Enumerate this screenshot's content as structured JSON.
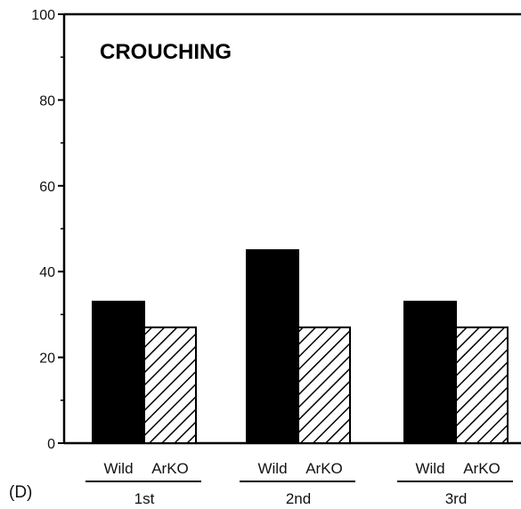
{
  "panel_label": "(D)",
  "chart_data": {
    "type": "bar",
    "title": "CROUCHING",
    "xlabel": "",
    "ylabel": "",
    "ylim": [
      0,
      100
    ],
    "yticks": [
      0,
      20,
      40,
      60,
      80,
      100
    ],
    "groups": [
      "1st",
      "2nd",
      "3rd"
    ],
    "bar_labels": [
      "Wild",
      "ArKO"
    ],
    "series": [
      {
        "values": [
          33,
          45,
          33
        ],
        "fill": "solid",
        "color": "#000000"
      },
      {
        "values": [
          27,
          27,
          27
        ],
        "fill": "hatched",
        "color": "#000000"
      }
    ],
    "grid": false,
    "legend": "none"
  }
}
